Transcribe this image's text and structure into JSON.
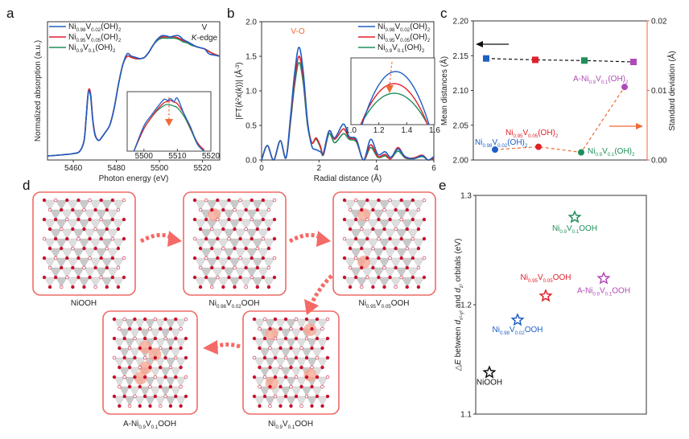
{
  "colors": {
    "blue": "#1f5fc4",
    "red": "#e0202a",
    "green": "#1f8f5a",
    "purple": "#b04ab8",
    "orange": "#f06a35",
    "black": "#111111",
    "box_red": "#ee6b66",
    "arrow_red": "#f46a66"
  },
  "chart_data": [
    {
      "id": "a",
      "panel_label": "a",
      "type": "line",
      "title": "",
      "annotation": [
        "V",
        "K-edge"
      ],
      "xlabel": "Photon energy (eV)",
      "ylabel": "Normalized absorption (a.u.)",
      "xlim": [
        5448,
        5528
      ],
      "xticks": [
        5460,
        5480,
        5500,
        5520
      ],
      "yticks": [],
      "legend_position": "top-left",
      "series": [
        {
          "name": "Ni0.98V0.02(OH)2",
          "label_parts": [
            "Ni",
            "0.98",
            "V",
            "0.02",
            "(OH)",
            "2"
          ],
          "color": "blue",
          "x": [
            5448,
            5455,
            5460,
            5463,
            5465,
            5466,
            5467,
            5468,
            5469,
            5470,
            5471,
            5472,
            5473,
            5475,
            5477,
            5479,
            5481,
            5483,
            5485,
            5487,
            5489,
            5491,
            5493,
            5495,
            5497,
            5499,
            5501,
            5503,
            5505,
            5507,
            5509,
            5511,
            5513,
            5515,
            5517,
            5519,
            5521,
            5523,
            5525,
            5528
          ],
          "y": [
            0.02,
            0.03,
            0.04,
            0.06,
            0.15,
            0.35,
            0.55,
            0.52,
            0.32,
            0.2,
            0.16,
            0.15,
            0.17,
            0.22,
            0.28,
            0.42,
            0.62,
            0.78,
            0.87,
            0.85,
            0.84,
            0.83,
            0.84,
            0.88,
            0.94,
            0.99,
            1.02,
            1.02,
            1.01,
            1.02,
            1.02,
            0.99,
            0.97,
            0.95,
            0.93,
            0.92,
            0.91,
            0.87,
            0.86,
            0.85
          ]
        },
        {
          "name": "Ni0.95V0.05(OH)2",
          "label_parts": [
            "Ni",
            "0.95",
            "V",
            "0.05",
            "(OH)",
            "2"
          ],
          "color": "red",
          "x": [
            5448,
            5455,
            5460,
            5463,
            5465,
            5466,
            5467,
            5468,
            5469,
            5470,
            5471,
            5472,
            5473,
            5475,
            5477,
            5479,
            5481,
            5483,
            5485,
            5487,
            5489,
            5491,
            5493,
            5495,
            5497,
            5499,
            5501,
            5503,
            5505,
            5507,
            5509,
            5511,
            5513,
            5515,
            5517,
            5519,
            5521,
            5523,
            5525,
            5528
          ],
          "y": [
            0.02,
            0.03,
            0.04,
            0.06,
            0.15,
            0.35,
            0.56,
            0.54,
            0.33,
            0.21,
            0.16,
            0.15,
            0.17,
            0.22,
            0.28,
            0.42,
            0.62,
            0.78,
            0.85,
            0.84,
            0.83,
            0.83,
            0.84,
            0.88,
            0.94,
            0.99,
            1.01,
            1.01,
            1.01,
            1.01,
            1.0,
            0.98,
            0.97,
            0.95,
            0.93,
            0.92,
            0.91,
            0.89,
            0.87,
            0.85
          ]
        },
        {
          "name": "Ni0.9V0.1(OH)2",
          "label_parts": [
            "Ni",
            "0.9",
            "V",
            "0.1",
            "(OH)",
            "2"
          ],
          "color": "green",
          "x": [
            5448,
            5455,
            5460,
            5463,
            5465,
            5466,
            5467,
            5468,
            5469,
            5470,
            5471,
            5472,
            5473,
            5475,
            5477,
            5479,
            5481,
            5483,
            5485,
            5487,
            5489,
            5491,
            5493,
            5495,
            5497,
            5499,
            5501,
            5503,
            5505,
            5507,
            5509,
            5511,
            5513,
            5515,
            5517,
            5519,
            5521,
            5523,
            5525,
            5528
          ],
          "y": [
            0.02,
            0.03,
            0.04,
            0.06,
            0.15,
            0.35,
            0.55,
            0.53,
            0.32,
            0.2,
            0.16,
            0.15,
            0.17,
            0.22,
            0.28,
            0.42,
            0.62,
            0.78,
            0.85,
            0.84,
            0.83,
            0.83,
            0.84,
            0.88,
            0.94,
            0.98,
            1.0,
            1.0,
            1.0,
            1.0,
            0.99,
            0.97,
            0.96,
            0.94,
            0.93,
            0.92,
            0.91,
            0.89,
            0.87,
            0.85
          ]
        }
      ],
      "inset": {
        "xlim": [
          5495,
          5520
        ],
        "xticks": [
          5500,
          5510,
          5520
        ],
        "arrow": "down",
        "series": [
          {
            "color": "blue",
            "x": [
              5497,
              5500,
              5502,
              5504,
              5506,
              5507,
              5508,
              5509,
              5510,
              5512,
              5514,
              5516,
              5518
            ],
            "y": [
              0.0,
              0.45,
              0.62,
              0.78,
              0.92,
              0.9,
              0.93,
              0.88,
              0.94,
              0.66,
              0.42,
              0.12,
              0.0
            ]
          },
          {
            "color": "red",
            "x": [
              5497,
              5500,
              5502,
              5504,
              5506,
              5507,
              5508,
              5509,
              5510,
              5512,
              5514,
              5516,
              5518
            ],
            "y": [
              0.0,
              0.4,
              0.58,
              0.74,
              0.86,
              0.88,
              0.9,
              0.87,
              0.84,
              0.66,
              0.4,
              0.15,
              0.02
            ]
          },
          {
            "color": "green",
            "x": [
              5497,
              5500,
              5502,
              5504,
              5506,
              5507,
              5508,
              5509,
              5510,
              5512,
              5514,
              5516,
              5518
            ],
            "y": [
              0.0,
              0.4,
              0.58,
              0.72,
              0.81,
              0.83,
              0.82,
              0.8,
              0.77,
              0.62,
              0.38,
              0.12,
              0.0
            ]
          }
        ]
      }
    },
    {
      "id": "b",
      "panel_label": "b",
      "type": "line",
      "xlabel": "Radial distance (Å)",
      "ylabel": "|FT(k²x(k))| (Å⁻³)",
      "ylabel_parts": [
        "|FT(",
        "k",
        "2",
        "x(",
        "k",
        "))| (Å",
        "-3",
        ")"
      ],
      "xlim": [
        0,
        6
      ],
      "ylim": [
        0,
        2.0
      ],
      "xticks": [
        0,
        2,
        4,
        6
      ],
      "yticks": [
        0.0,
        0.5,
        1.0,
        1.5,
        2.0
      ],
      "ytick_labels": [
        "0.0",
        "0.5",
        "1.0",
        "1.5",
        "2.0"
      ],
      "annotation": "V-O",
      "legend_position": "top-right",
      "series": [
        {
          "name": "Ni0.98V0.02(OH)2",
          "label_parts": [
            "Ni",
            "0.98",
            "V",
            "0.02",
            "(OH)",
            "2"
          ],
          "color": "blue",
          "x": [
            0,
            0.2,
            0.42,
            0.65,
            0.85,
            1.0,
            1.15,
            1.3,
            1.45,
            1.6,
            1.75,
            1.9,
            2.05,
            2.15,
            2.35,
            2.55,
            2.85,
            3.05,
            3.3,
            3.55,
            3.8,
            4.05,
            4.3,
            4.5,
            4.75,
            5.0,
            5.3,
            5.6,
            5.8,
            6.0
          ],
          "y": [
            0.0,
            0.21,
            0.0,
            0.28,
            0.03,
            0.6,
            1.25,
            1.63,
            1.28,
            0.55,
            0.2,
            0.15,
            0.12,
            0.1,
            0.42,
            0.32,
            0.52,
            0.34,
            0.3,
            0.0,
            0.3,
            0.08,
            0.12,
            0.04,
            0.16,
            0.05,
            0.02,
            0.06,
            0.0,
            0.05
          ]
        },
        {
          "name": "Ni0.95V0.05(OH)2",
          "label_parts": [
            "Ni",
            "0.95",
            "V",
            "0.05",
            "(OH)",
            "2"
          ],
          "color": "red",
          "x": [
            0,
            0.2,
            0.42,
            0.65,
            0.85,
            1.0,
            1.15,
            1.3,
            1.45,
            1.6,
            1.75,
            1.9,
            2.05,
            2.15,
            2.35,
            2.55,
            2.85,
            3.05,
            3.3,
            3.55,
            3.8,
            4.05,
            4.3,
            4.5,
            4.75,
            5.0,
            5.3,
            5.6,
            5.8,
            6.0
          ],
          "y": [
            0.0,
            0.21,
            0.0,
            0.28,
            0.03,
            0.56,
            1.15,
            1.5,
            1.2,
            0.55,
            0.25,
            0.32,
            0.2,
            0.08,
            0.42,
            0.3,
            0.45,
            0.32,
            0.28,
            0.0,
            0.22,
            0.05,
            0.08,
            0.02,
            0.18,
            0.04,
            0.03,
            0.07,
            0.0,
            0.03
          ]
        },
        {
          "name": "Ni0.9V0.1(OH)2",
          "label_parts": [
            "Ni",
            "0.9",
            "V",
            "0.1",
            "(OH)",
            "2"
          ],
          "color": "green",
          "x": [
            0,
            0.2,
            0.42,
            0.65,
            0.85,
            1.0,
            1.15,
            1.3,
            1.45,
            1.6,
            1.75,
            1.9,
            2.05,
            2.15,
            2.35,
            2.55,
            2.85,
            3.05,
            3.3,
            3.55,
            3.8,
            4.05,
            4.3,
            4.5,
            4.75,
            5.0,
            5.3,
            5.6,
            5.8,
            6.0
          ],
          "y": [
            0.0,
            0.21,
            0.0,
            0.28,
            0.03,
            0.52,
            1.08,
            1.41,
            1.12,
            0.5,
            0.25,
            0.3,
            0.18,
            0.07,
            0.38,
            0.25,
            0.38,
            0.3,
            0.26,
            0.0,
            0.18,
            0.04,
            0.06,
            0.02,
            0.13,
            0.03,
            0.02,
            0.05,
            0.0,
            0.02
          ]
        }
      ],
      "inset": {
        "xlim": [
          1.0,
          1.6
        ],
        "xticks": [
          1.0,
          1.2,
          1.4,
          1.6
        ],
        "xtick_labels": [
          "1.0",
          "1.2",
          "1.4",
          "1.6"
        ],
        "arrow": "down",
        "peaks": [
          {
            "color": "blue",
            "peak_x": 1.32,
            "level": 0.88
          },
          {
            "color": "red",
            "peak_x": 1.31,
            "level": 0.68
          },
          {
            "color": "green",
            "peak_x": 1.31,
            "level": 0.52
          }
        ]
      }
    },
    {
      "id": "c",
      "panel_label": "c",
      "type": "scatter",
      "ylabel_left": "Mean distances (Å)",
      "ylabel_right": "Standard deviation (Å)",
      "ylim_left": [
        2.0,
        2.2
      ],
      "ylim_right": [
        0.0,
        0.02
      ],
      "yticks_left": [
        "2.00",
        "2.05",
        "2.10",
        "2.15",
        "2.20"
      ],
      "yticks_right": [
        "0.00",
        "0.01",
        "0.02"
      ],
      "categories": [
        "Ni0.98V0.02(OH)2",
        "Ni0.95V0.05(OH)2",
        "Ni0.9V0.1(OH)2",
        "A-Ni0.9V0.1(OH)2"
      ],
      "category_label_parts": [
        [
          "Ni",
          "0.98",
          "V",
          "0.02",
          "(OH)",
          "2"
        ],
        [
          "Ni",
          "0.95",
          "V",
          "0.05",
          "(OH)",
          "2"
        ],
        [
          "Ni",
          "0.9",
          "V",
          "0.1",
          "(OH)",
          "2"
        ],
        [
          "A-Ni",
          "0.9",
          "V",
          "0.1",
          "(OH)",
          "2"
        ]
      ],
      "category_colors": [
        "blue",
        "red",
        "green",
        "purple"
      ],
      "series": [
        {
          "name": "Mean distances",
          "axis": "left",
          "marker": "square",
          "line": "black-dashed",
          "values": [
            2.146,
            2.144,
            2.143,
            2.141
          ]
        },
        {
          "name": "Standard deviation",
          "axis": "right",
          "marker": "circle",
          "line": "orange-dashed",
          "values": [
            0.0015,
            0.0019,
            0.0011,
            0.0105
          ]
        }
      ]
    },
    {
      "id": "e",
      "panel_label": "e",
      "type": "scatter",
      "ylabel": "ΔE between dx²-y² and dz² orbitals (eV)",
      "ylim": [
        1.1,
        1.3
      ],
      "yticks": [
        "1.1",
        "1.2",
        "1.3"
      ],
      "marker": "star-outline",
      "points": [
        {
          "label": "NiOOH",
          "label_parts": [
            "NiOOH"
          ],
          "color": "black",
          "x_order": 0,
          "y": 1.138
        },
        {
          "label": "Ni0.98V0.02OOH",
          "label_parts": [
            "Ni",
            "0.98",
            "V",
            "0.02",
            "OOH"
          ],
          "color": "blue",
          "x_order": 1,
          "y": 1.186
        },
        {
          "label": "Ni0.95V0.05OOH",
          "label_parts": [
            "Ni",
            "0.95",
            "V",
            "0.05",
            "OOH"
          ],
          "color": "red",
          "x_order": 2,
          "y": 1.208
        },
        {
          "label": "Ni0.9V0.1OOH",
          "label_parts": [
            "Ni",
            "0.9",
            "V",
            "0.1",
            "OOH"
          ],
          "color": "green",
          "x_order": 3,
          "y": 1.28
        },
        {
          "label": "A-Ni0.9V0.1OOH",
          "label_parts": [
            "A-Ni",
            "0.9",
            "V",
            "0.1",
            "OOH"
          ],
          "color": "purple",
          "x_order": 4,
          "y": 1.224
        }
      ]
    }
  ],
  "panel_d": {
    "panel_label": "d",
    "structures": [
      {
        "label": "NiOOH",
        "label_parts": [
          "NiOOH"
        ],
        "v_sites": 0
      },
      {
        "label": "Ni0.98V0.02OOH",
        "label_parts": [
          "Ni",
          "0.98",
          "V",
          "0.02",
          "OOH"
        ],
        "v_sites": 1
      },
      {
        "label": "Ni0.95V0.05OOH",
        "label_parts": [
          "Ni",
          "0.95",
          "V",
          "0.05",
          "OOH"
        ],
        "v_sites": 2
      },
      {
        "label": "Ni0.9V0.1OOH",
        "label_parts": [
          "Ni",
          "0.9",
          "V",
          "0.1",
          "OOH"
        ],
        "v_sites": 4
      },
      {
        "label": "A-Ni0.9V0.1OOH",
        "label_parts": [
          "A-Ni",
          "0.9",
          "V",
          "0.1",
          "OOH"
        ],
        "v_sites": 4
      }
    ],
    "flow": [
      "NiOOH → Ni0.98V0.02OOH",
      "Ni0.98V0.02OOH → Ni0.95V0.05OOH",
      "Ni0.95V0.05OOH → Ni0.9V0.1OOH",
      "Ni0.9V0.1OOH → A-Ni0.9V0.1OOH"
    ]
  }
}
